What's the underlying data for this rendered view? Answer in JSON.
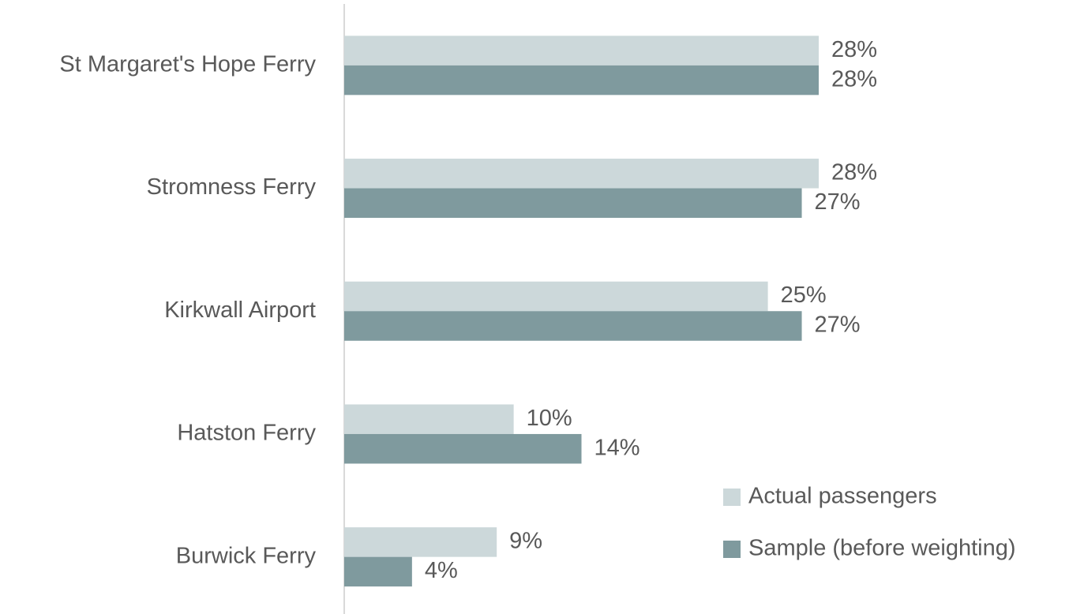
{
  "chart_data": {
    "type": "bar",
    "orientation": "horizontal",
    "categories": [
      "St Margaret's Hope Ferry",
      "Stromness Ferry",
      "Kirkwall Airport",
      "Hatston Ferry",
      "Burwick Ferry"
    ],
    "series": [
      {
        "name": "Actual passengers",
        "color": "#ccd8da",
        "values": [
          28,
          28,
          25,
          10,
          9
        ],
        "value_labels": [
          "28%",
          "28%",
          "25%",
          "10%",
          "9%"
        ]
      },
      {
        "name": "Sample (before weighting)",
        "color": "#7f9a9e",
        "values": [
          28,
          27,
          27,
          14,
          4
        ],
        "value_labels": [
          "28%",
          "27%",
          "27%",
          "14%",
          "4%"
        ]
      }
    ],
    "legend": "lower right"
  }
}
